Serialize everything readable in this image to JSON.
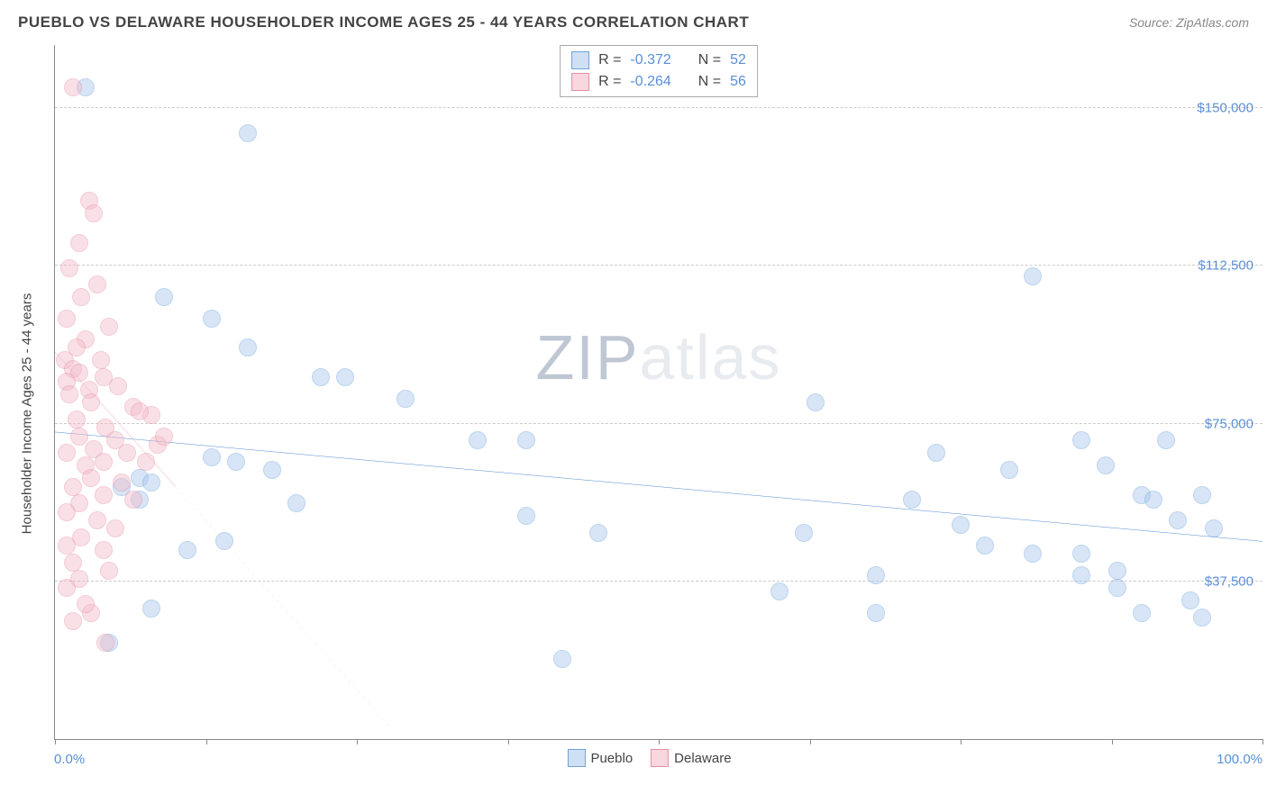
{
  "header": {
    "title": "PUEBLO VS DELAWARE HOUSEHOLDER INCOME AGES 25 - 44 YEARS CORRELATION CHART",
    "source": "Source: ZipAtlas.com"
  },
  "watermark": {
    "part1": "ZIP",
    "part2": "atlas"
  },
  "chart": {
    "type": "scatter",
    "y_axis_title": "Householder Income Ages 25 - 44 years",
    "x_min_label": "0.0%",
    "x_max_label": "100.0%",
    "xlim": [
      0,
      100
    ],
    "ylim": [
      0,
      165000
    ],
    "y_gridlines": [
      37500,
      75000,
      112500,
      150000
    ],
    "y_tick_labels": [
      "$37,500",
      "$75,000",
      "$112,500",
      "$150,000"
    ],
    "x_ticks": [
      0,
      12.5,
      25,
      37.5,
      50,
      62.5,
      75,
      87.5,
      100
    ],
    "background_color": "#ffffff",
    "grid_color": "#cccccc",
    "axis_color": "#888888",
    "tick_label_color": "#5a8fd6",
    "marker_radius": 10,
    "marker_opacity": 0.45,
    "series": [
      {
        "name": "Pueblo",
        "color_fill": "#a8c7ec",
        "color_stroke": "#6fa3da",
        "swatch_fill": "#cfe0f4",
        "swatch_stroke": "#6fa3da",
        "trend": {
          "x1": 0,
          "y1": 73000,
          "x2": 100,
          "y2": 47000,
          "color": "#2f72c9",
          "width": 2.5,
          "dash": "none"
        },
        "points": [
          [
            2.5,
            155000
          ],
          [
            16,
            144000
          ],
          [
            9,
            105000
          ],
          [
            13,
            100000
          ],
          [
            16,
            93000
          ],
          [
            22,
            86000
          ],
          [
            24,
            86000
          ],
          [
            29,
            81000
          ],
          [
            13,
            67000
          ],
          [
            15,
            66000
          ],
          [
            7,
            62000
          ],
          [
            8,
            61000
          ],
          [
            5.5,
            60000
          ],
          [
            7,
            57000
          ],
          [
            18,
            64000
          ],
          [
            20,
            56000
          ],
          [
            14,
            47000
          ],
          [
            11,
            45000
          ],
          [
            8,
            31000
          ],
          [
            4.5,
            23000
          ],
          [
            35,
            71000
          ],
          [
            39,
            71000
          ],
          [
            39,
            53000
          ],
          [
            45,
            49000
          ],
          [
            42,
            19000
          ],
          [
            60,
            35000
          ],
          [
            62,
            49000
          ],
          [
            63,
            80000
          ],
          [
            68,
            39000
          ],
          [
            68,
            30000
          ],
          [
            71,
            57000
          ],
          [
            73,
            68000
          ],
          [
            75,
            51000
          ],
          [
            77,
            46000
          ],
          [
            79,
            64000
          ],
          [
            81,
            44000
          ],
          [
            81,
            110000
          ],
          [
            85,
            71000
          ],
          [
            85,
            39000
          ],
          [
            85,
            44000
          ],
          [
            87,
            65000
          ],
          [
            88,
            36000
          ],
          [
            88,
            40000
          ],
          [
            90,
            58000
          ],
          [
            90,
            30000
          ],
          [
            91,
            57000
          ],
          [
            92,
            71000
          ],
          [
            93,
            52000
          ],
          [
            94,
            33000
          ],
          [
            95,
            29000
          ],
          [
            95,
            58000
          ],
          [
            96,
            50000
          ]
        ]
      },
      {
        "name": "Delaware",
        "color_fill": "#f3bcc9",
        "color_stroke": "#e590a6",
        "swatch_fill": "#f8d7df",
        "swatch_stroke": "#e590a6",
        "trend": {
          "x1": 0,
          "y1": 92000,
          "x2": 10,
          "y2": 60000,
          "color": "#e56d88",
          "width": 2,
          "dash": "none"
        },
        "trend_ext": {
          "x1": 10,
          "y1": 60000,
          "x2": 28,
          "y2": 2000,
          "color": "#e9a4b3",
          "width": 1,
          "dash": "4,4"
        },
        "points": [
          [
            1.5,
            155000
          ],
          [
            2.8,
            128000
          ],
          [
            3.2,
            125000
          ],
          [
            2.0,
            118000
          ],
          [
            1.2,
            112000
          ],
          [
            3.5,
            108000
          ],
          [
            2.2,
            105000
          ],
          [
            1.0,
            100000
          ],
          [
            4.5,
            98000
          ],
          [
            2.5,
            95000
          ],
          [
            1.8,
            93000
          ],
          [
            0.8,
            90000
          ],
          [
            3.8,
            90000
          ],
          [
            1.5,
            88000
          ],
          [
            2.0,
            87000
          ],
          [
            1.0,
            85000
          ],
          [
            4.0,
            86000
          ],
          [
            5.2,
            84000
          ],
          [
            2.8,
            83000
          ],
          [
            1.2,
            82000
          ],
          [
            3.0,
            80000
          ],
          [
            6.5,
            79000
          ],
          [
            8.0,
            77000
          ],
          [
            1.8,
            76000
          ],
          [
            4.2,
            74000
          ],
          [
            7.0,
            78000
          ],
          [
            2.0,
            72000
          ],
          [
            5.0,
            71000
          ],
          [
            8.5,
            70000
          ],
          [
            3.2,
            69000
          ],
          [
            1.0,
            68000
          ],
          [
            6.0,
            68000
          ],
          [
            4.0,
            66000
          ],
          [
            2.5,
            65000
          ],
          [
            7.5,
            66000
          ],
          [
            9.0,
            72000
          ],
          [
            3.0,
            62000
          ],
          [
            1.5,
            60000
          ],
          [
            5.5,
            61000
          ],
          [
            4.0,
            58000
          ],
          [
            2.0,
            56000
          ],
          [
            6.5,
            57000
          ],
          [
            1.0,
            54000
          ],
          [
            3.5,
            52000
          ],
          [
            5.0,
            50000
          ],
          [
            2.2,
            48000
          ],
          [
            1.0,
            46000
          ],
          [
            4.0,
            45000
          ],
          [
            1.5,
            42000
          ],
          [
            4.5,
            40000
          ],
          [
            2.0,
            38000
          ],
          [
            1.0,
            36000
          ],
          [
            4.2,
            23000
          ],
          [
            3.0,
            30000
          ],
          [
            1.5,
            28000
          ],
          [
            2.5,
            32000
          ]
        ]
      }
    ],
    "stats_box": {
      "rows": [
        {
          "series": "Pueblo",
          "r_label": "R =",
          "r": "-0.372",
          "n_label": "N =",
          "n": "52"
        },
        {
          "series": "Delaware",
          "r_label": "R =",
          "r": "-0.264",
          "n_label": "N =",
          "n": "56"
        }
      ]
    },
    "bottom_legend": [
      {
        "label": "Pueblo",
        "series": "Pueblo"
      },
      {
        "label": "Delaware",
        "series": "Delaware"
      }
    ]
  }
}
